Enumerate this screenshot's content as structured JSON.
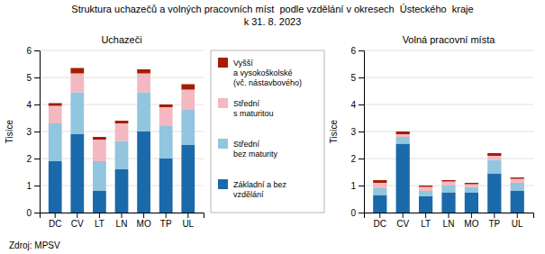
{
  "title": "Struktura uchazečů a volných pracovních míst  podle vzdělání v okresech  Ústeckého  kraje",
  "subtitle": "k 31. 8. 2023",
  "source": "Zdroj: MPSV",
  "chart_data": [
    {
      "type": "bar",
      "stacked": true,
      "grid": true,
      "title": "Uchazeči",
      "ylabel": "Tisíce",
      "categories": [
        "DC",
        "CV",
        "LT",
        "LN",
        "MO",
        "TP",
        "UL"
      ],
      "series": [
        {
          "name": "Základní a bez\nvzdělání",
          "color": "#1a6aab",
          "values": [
            1.9,
            2.9,
            0.8,
            1.6,
            3.0,
            2.0,
            2.5
          ]
        },
        {
          "name": "Střední\nbez maturity",
          "color": "#92c5de",
          "values": [
            1.4,
            1.55,
            1.1,
            1.05,
            1.45,
            1.2,
            1.3
          ]
        },
        {
          "name": "Střední\ns maturitou",
          "color": "#f4b8c1",
          "values": [
            0.65,
            0.7,
            0.8,
            0.65,
            0.7,
            0.7,
            0.75
          ]
        },
        {
          "name": "Vyšší\na vysokoškolské\n(vč. nástavbového)",
          "color": "#a61c00",
          "values": [
            0.1,
            0.2,
            0.1,
            0.1,
            0.15,
            0.1,
            0.2
          ]
        }
      ],
      "ylim": [
        0,
        6
      ],
      "yticks": [
        0,
        1,
        2,
        3,
        4,
        5,
        6
      ]
    },
    {
      "type": "bar",
      "stacked": true,
      "grid": true,
      "title": "Volná pracovní místa",
      "ylabel": "Tisíce",
      "categories": [
        "DC",
        "CV",
        "LT",
        "LN",
        "MO",
        "TP",
        "UL"
      ],
      "series": [
        {
          "name": "Základní a bez\nvzdělání",
          "color": "#1a6aab",
          "values": [
            0.65,
            2.55,
            0.6,
            0.75,
            0.75,
            1.45,
            0.8
          ]
        },
        {
          "name": "Střední\nbez maturity",
          "color": "#92c5de",
          "values": [
            0.25,
            0.25,
            0.2,
            0.25,
            0.2,
            0.5,
            0.3
          ]
        },
        {
          "name": "Střední\ns maturitou",
          "color": "#f4b8c1",
          "values": [
            0.2,
            0.1,
            0.15,
            0.15,
            0.1,
            0.15,
            0.15
          ]
        },
        {
          "name": "Vyšší\na vysokoškolské\n(vč. nástavbového)",
          "color": "#a61c00",
          "values": [
            0.1,
            0.1,
            0.05,
            0.05,
            0.05,
            0.1,
            0.05
          ]
        }
      ],
      "ylim": [
        0,
        6
      ],
      "yticks": [
        0,
        1,
        2,
        3,
        4,
        5,
        6
      ]
    }
  ]
}
